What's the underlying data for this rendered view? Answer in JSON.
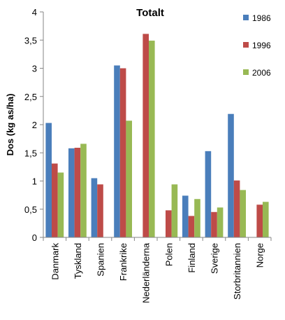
{
  "chart_data": {
    "type": "bar",
    "title": "Totalt",
    "xlabel": "",
    "ylabel": "Dos (kg as/ha)",
    "ylim": [
      0,
      4
    ],
    "yticks": [
      "0",
      "0,5",
      "1",
      "1,5",
      "2",
      "2,5",
      "3",
      "3,5",
      "4"
    ],
    "legend_position": "right",
    "grid": false,
    "categories": [
      "Danmark",
      "Tyskland",
      "Spanien",
      "Frankrike",
      "Nederländerna",
      "Polen",
      "Finland",
      "Sverige",
      "Storbritannien",
      "Norge"
    ],
    "series": [
      {
        "name": "1986",
        "color": "#4a7ebb",
        "values": [
          2.03,
          1.58,
          1.05,
          3.05,
          null,
          null,
          0.74,
          1.53,
          2.19,
          null
        ]
      },
      {
        "name": "1996",
        "color": "#be4b48",
        "values": [
          1.31,
          1.59,
          0.94,
          3.0,
          3.61,
          0.48,
          0.38,
          0.45,
          1.01,
          0.58
        ]
      },
      {
        "name": "2006",
        "color": "#98b954",
        "values": [
          1.15,
          1.66,
          null,
          2.07,
          3.49,
          0.94,
          0.68,
          0.53,
          0.84,
          0.63
        ]
      }
    ]
  }
}
